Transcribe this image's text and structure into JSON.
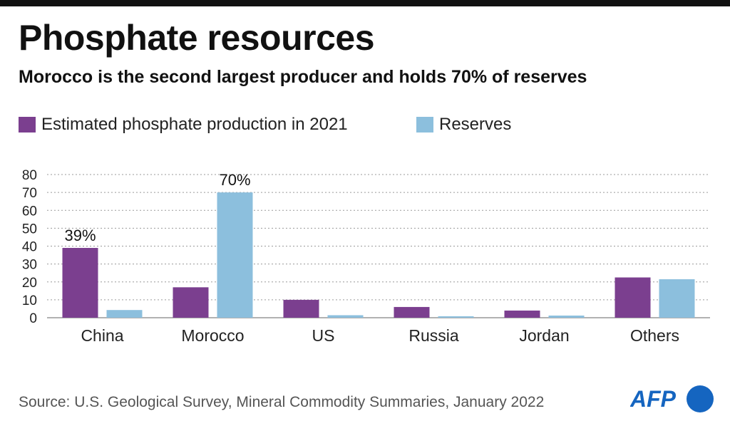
{
  "header": {
    "title": "Phosphate resources",
    "subtitle": "Morocco is the second largest producer and holds 70% of reserves"
  },
  "legend": [
    {
      "label": "Estimated phosphate production in 2021",
      "color": "#7b3f8f"
    },
    {
      "label": "Reserves",
      "color": "#8cbfdd"
    }
  ],
  "chart_data": {
    "type": "bar",
    "categories": [
      "China",
      "Morocco",
      "US",
      "Russia",
      "Jordan",
      "Others"
    ],
    "series": [
      {
        "name": "Estimated phosphate production in 2021",
        "color": "#7b3f8f",
        "values": [
          39,
          17,
          10,
          6,
          4,
          22.5
        ]
      },
      {
        "name": "Reserves",
        "color": "#8cbfdd",
        "values": [
          4.3,
          70,
          1.4,
          0.8,
          1.2,
          21.5
        ]
      }
    ],
    "data_labels": [
      {
        "series": 0,
        "category": "China",
        "text": "39%"
      },
      {
        "series": 1,
        "category": "Morocco",
        "text": "70%"
      }
    ],
    "yticks": [
      0,
      10,
      20,
      30,
      40,
      50,
      60,
      70,
      80
    ],
    "ylim": [
      0,
      80
    ],
    "grid": "dotted horizontal",
    "legend_position": "top-left"
  },
  "footer": {
    "source": "Source: U.S. Geological Survey, Mineral Commodity Summaries, January 2022",
    "logo_text": "AFP",
    "logo_color": "#1565c0"
  }
}
